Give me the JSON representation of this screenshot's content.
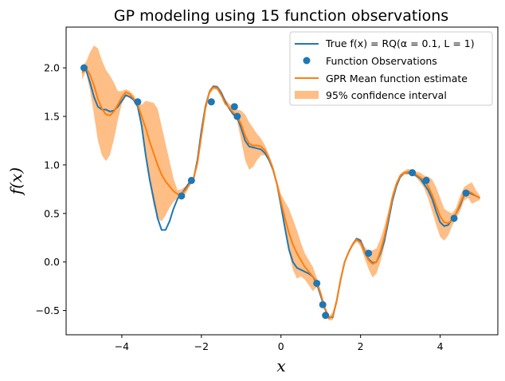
{
  "chart_data": {
    "type": "line",
    "title": "GP modeling using 15 function observations",
    "xlabel": "x",
    "ylabel": "f(x)",
    "xlim": [
      -5.4,
      5.45
    ],
    "ylim": [
      -0.75,
      2.42
    ],
    "xticks": [
      -4,
      -2,
      0,
      2,
      4
    ],
    "yticks": [
      -0.5,
      0.0,
      0.5,
      1.0,
      1.5,
      2.0
    ],
    "xtick_labels": [
      "−4",
      "−2",
      "0",
      "2",
      "4"
    ],
    "ytick_labels": [
      "−0.5",
      "0.0",
      "0.5",
      "1.0",
      "1.5",
      "2.0"
    ],
    "grid": false,
    "legend_position": "top-right",
    "legend": [
      "True f(x) = RQ(α = 0.1, L = 1)",
      "Function Observations",
      "GPR Mean function estimate",
      "95% confidence interval"
    ],
    "colors": {
      "true": "#1f77b4",
      "observations": "#1f77b4",
      "mean": "#ff7f0e",
      "ci": "#ffbe86"
    },
    "true_function": {
      "x": [
        -5.0,
        -4.9,
        -4.8,
        -4.7,
        -4.6,
        -4.5,
        -4.4,
        -4.3,
        -4.2,
        -4.1,
        -4.0,
        -3.9,
        -3.8,
        -3.7,
        -3.6,
        -3.5,
        -3.4,
        -3.3,
        -3.2,
        -3.1,
        -3.0,
        -2.9,
        -2.8,
        -2.7,
        -2.6,
        -2.5,
        -2.4,
        -2.3,
        -2.2,
        -2.1,
        -2.0,
        -1.9,
        -1.8,
        -1.7,
        -1.6,
        -1.5,
        -1.4,
        -1.3,
        -1.2,
        -1.1,
        -1.0,
        -0.9,
        -0.8,
        -0.7,
        -0.6,
        -0.5,
        -0.4,
        -0.3,
        -0.2,
        -0.1,
        0.0,
        0.1,
        0.2,
        0.3,
        0.4,
        0.5,
        0.6,
        0.7,
        0.8,
        0.9,
        1.0,
        1.1,
        1.2,
        1.3,
        1.4,
        1.5,
        1.6,
        1.7,
        1.8,
        1.9,
        2.0,
        2.1,
        2.2,
        2.3,
        2.4,
        2.5,
        2.6,
        2.7,
        2.8,
        2.9,
        3.0,
        3.1,
        3.2,
        3.3,
        3.4,
        3.5,
        3.6,
        3.7,
        3.8,
        3.9,
        4.0,
        4.1,
        4.2,
        4.3,
        4.4,
        4.5,
        4.6,
        4.7,
        4.8,
        4.9,
        5.0
      ],
      "y": [
        2.0,
        1.98,
        1.85,
        1.7,
        1.6,
        1.57,
        1.57,
        1.55,
        1.56,
        1.6,
        1.66,
        1.72,
        1.7,
        1.67,
        1.6,
        1.4,
        1.1,
        0.85,
        0.65,
        0.45,
        0.33,
        0.33,
        0.42,
        0.55,
        0.65,
        0.7,
        0.76,
        0.82,
        0.85,
        1.05,
        1.35,
        1.6,
        1.75,
        1.81,
        1.8,
        1.74,
        1.65,
        1.58,
        1.52,
        1.49,
        1.38,
        1.25,
        1.19,
        1.18,
        1.17,
        1.16,
        1.12,
        1.05,
        0.95,
        0.8,
        0.58,
        0.35,
        0.13,
        0.0,
        -0.06,
        -0.08,
        -0.1,
        -0.12,
        -0.15,
        -0.22,
        -0.35,
        -0.48,
        -0.57,
        -0.57,
        -0.4,
        -0.18,
        0.0,
        0.1,
        0.18,
        0.24,
        0.22,
        0.11,
        0.03,
        -0.01,
        0.0,
        0.09,
        0.22,
        0.42,
        0.63,
        0.78,
        0.88,
        0.92,
        0.92,
        0.91,
        0.89,
        0.86,
        0.8,
        0.74,
        0.65,
        0.52,
        0.41,
        0.37,
        0.38,
        0.44,
        0.5,
        0.58,
        0.69,
        0.72,
        0.7,
        0.68,
        0.66
      ]
    },
    "observations": {
      "x": [
        -4.95,
        -3.6,
        -2.5,
        -2.25,
        -1.75,
        -1.17,
        -1.1,
        0.9,
        1.05,
        1.12,
        2.2,
        3.3,
        3.65,
        4.35,
        4.65
      ],
      "y": [
        2.0,
        1.65,
        0.68,
        0.84,
        1.65,
        1.6,
        1.5,
        -0.22,
        -0.44,
        -0.55,
        0.09,
        0.92,
        0.84,
        0.45,
        0.71
      ]
    },
    "gpr_mean": {
      "x": [
        -5.0,
        -4.9,
        -4.8,
        -4.7,
        -4.6,
        -4.5,
        -4.4,
        -4.3,
        -4.2,
        -4.1,
        -4.0,
        -3.9,
        -3.8,
        -3.7,
        -3.6,
        -3.5,
        -3.4,
        -3.3,
        -3.2,
        -3.1,
        -3.0,
        -2.9,
        -2.8,
        -2.7,
        -2.6,
        -2.5,
        -2.4,
        -2.3,
        -2.2,
        -2.1,
        -2.0,
        -1.9,
        -1.8,
        -1.7,
        -1.6,
        -1.5,
        -1.4,
        -1.3,
        -1.2,
        -1.1,
        -1.0,
        -0.9,
        -0.8,
        -0.7,
        -0.6,
        -0.5,
        -0.4,
        -0.3,
        -0.2,
        -0.1,
        0.0,
        0.1,
        0.2,
        0.3,
        0.4,
        0.5,
        0.6,
        0.7,
        0.8,
        0.9,
        1.0,
        1.1,
        1.2,
        1.3,
        1.4,
        1.5,
        1.6,
        1.7,
        1.8,
        1.9,
        2.0,
        2.1,
        2.2,
        2.3,
        2.4,
        2.5,
        2.6,
        2.7,
        2.8,
        2.9,
        3.0,
        3.1,
        3.2,
        3.3,
        3.4,
        3.5,
        3.6,
        3.7,
        3.8,
        3.9,
        4.0,
        4.1,
        4.2,
        4.3,
        4.4,
        4.5,
        4.6,
        4.7,
        4.8,
        4.9,
        5.0
      ],
      "y": [
        1.95,
        2.0,
        1.93,
        1.82,
        1.68,
        1.58,
        1.52,
        1.51,
        1.55,
        1.62,
        1.7,
        1.75,
        1.73,
        1.68,
        1.62,
        1.5,
        1.38,
        1.24,
        1.12,
        1.0,
        0.9,
        0.83,
        0.78,
        0.73,
        0.7,
        0.7,
        0.74,
        0.8,
        0.86,
        1.02,
        1.3,
        1.58,
        1.75,
        1.8,
        1.79,
        1.72,
        1.63,
        1.59,
        1.54,
        1.5,
        1.42,
        1.3,
        1.22,
        1.2,
        1.2,
        1.19,
        1.15,
        1.07,
        0.96,
        0.8,
        0.62,
        0.45,
        0.3,
        0.18,
        0.09,
        0.02,
        -0.05,
        -0.1,
        -0.15,
        -0.2,
        -0.33,
        -0.47,
        -0.58,
        -0.56,
        -0.4,
        -0.18,
        0.0,
        0.1,
        0.18,
        0.23,
        0.2,
        0.1,
        0.02,
        -0.02,
        0.0,
        0.11,
        0.26,
        0.46,
        0.66,
        0.8,
        0.89,
        0.92,
        0.93,
        0.92,
        0.9,
        0.87,
        0.84,
        0.78,
        0.69,
        0.58,
        0.47,
        0.41,
        0.4,
        0.43,
        0.5,
        0.6,
        0.7,
        0.73,
        0.71,
        0.68,
        0.66
      ]
    },
    "ci_95": {
      "x": [
        -5.0,
        -4.9,
        -4.8,
        -4.7,
        -4.6,
        -4.5,
        -4.4,
        -4.3,
        -4.2,
        -4.1,
        -4.0,
        -3.9,
        -3.8,
        -3.7,
        -3.6,
        -3.5,
        -3.4,
        -3.3,
        -3.2,
        -3.1,
        -3.0,
        -2.9,
        -2.8,
        -2.7,
        -2.6,
        -2.5,
        -2.4,
        -2.3,
        -2.2,
        -2.1,
        -2.0,
        -1.9,
        -1.8,
        -1.7,
        -1.6,
        -1.5,
        -1.4,
        -1.3,
        -1.2,
        -1.1,
        -1.0,
        -0.9,
        -0.8,
        -0.7,
        -0.6,
        -0.5,
        -0.4,
        -0.3,
        -0.2,
        -0.1,
        0.0,
        0.1,
        0.2,
        0.3,
        0.4,
        0.5,
        0.6,
        0.7,
        0.8,
        0.9,
        1.0,
        1.1,
        1.2,
        1.3,
        1.4,
        1.5,
        1.6,
        1.7,
        1.8,
        1.9,
        2.0,
        2.1,
        2.2,
        2.3,
        2.4,
        2.5,
        2.6,
        2.7,
        2.8,
        2.9,
        3.0,
        3.1,
        3.2,
        3.3,
        3.4,
        3.5,
        3.6,
        3.7,
        3.8,
        3.9,
        4.0,
        4.1,
        4.2,
        4.3,
        4.4,
        4.5,
        4.6,
        4.7,
        4.8,
        4.9,
        5.0
      ],
      "lower": [
        1.88,
        1.96,
        1.77,
        1.52,
        1.25,
        1.1,
        1.04,
        1.1,
        1.26,
        1.46,
        1.63,
        1.7,
        1.7,
        1.65,
        1.6,
        1.4,
        1.08,
        0.8,
        0.58,
        0.45,
        0.42,
        0.48,
        0.56,
        0.62,
        0.66,
        0.65,
        0.7,
        0.78,
        0.84,
        0.98,
        1.26,
        1.55,
        1.72,
        1.78,
        1.77,
        1.7,
        1.62,
        1.57,
        1.53,
        1.45,
        1.25,
        1.05,
        0.95,
        0.98,
        1.05,
        1.1,
        1.1,
        1.04,
        0.94,
        0.78,
        0.56,
        0.32,
        0.1,
        -0.08,
        -0.17,
        -0.15,
        -0.18,
        -0.24,
        -0.3,
        -0.26,
        -0.36,
        -0.5,
        -0.6,
        -0.6,
        -0.42,
        -0.2,
        -0.02,
        0.08,
        0.16,
        0.21,
        0.16,
        0.04,
        -0.07,
        -0.16,
        -0.12,
        0.0,
        0.17,
        0.38,
        0.6,
        0.76,
        0.86,
        0.9,
        0.9,
        0.9,
        0.87,
        0.82,
        0.76,
        0.65,
        0.52,
        0.38,
        0.26,
        0.22,
        0.27,
        0.37,
        0.45,
        0.52,
        0.63,
        0.66,
        0.6,
        0.62,
        0.64
      ],
      "upper": [
        2.02,
        2.06,
        2.16,
        2.23,
        2.2,
        2.08,
        1.98,
        1.92,
        1.85,
        1.76,
        1.76,
        1.78,
        1.76,
        1.72,
        1.64,
        1.62,
        1.66,
        1.65,
        1.64,
        1.58,
        1.4,
        1.22,
        1.04,
        0.86,
        0.74,
        0.75,
        0.78,
        0.82,
        0.88,
        1.06,
        1.35,
        1.62,
        1.78,
        1.82,
        1.82,
        1.77,
        1.68,
        1.63,
        1.6,
        1.57,
        1.56,
        1.52,
        1.44,
        1.38,
        1.32,
        1.27,
        1.2,
        1.1,
        0.99,
        0.84,
        0.7,
        0.62,
        0.55,
        0.44,
        0.33,
        0.2,
        0.09,
        0.02,
        -0.05,
        -0.16,
        -0.3,
        -0.44,
        -0.56,
        -0.52,
        -0.37,
        -0.16,
        0.02,
        0.12,
        0.2,
        0.25,
        0.24,
        0.16,
        0.11,
        0.12,
        0.14,
        0.24,
        0.37,
        0.53,
        0.71,
        0.83,
        0.91,
        0.94,
        0.96,
        0.94,
        0.93,
        0.92,
        0.89,
        0.88,
        0.85,
        0.77,
        0.66,
        0.55,
        0.52,
        0.5,
        0.56,
        0.68,
        0.77,
        0.8,
        0.82,
        0.74,
        0.68
      ]
    }
  }
}
